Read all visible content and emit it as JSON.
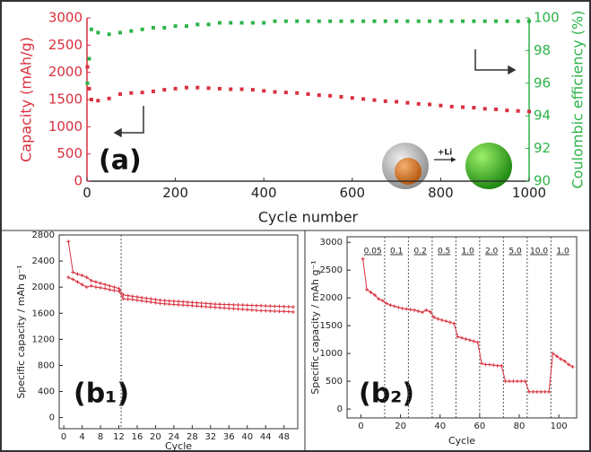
{
  "chart_data": [
    {
      "type": "scatter",
      "annotation": "(a)",
      "inset_label": "+Li",
      "xlabel": "Cycle number",
      "ylabel": "Capacity (mAh/g)",
      "y2label": "Coulombic efficiency (%)",
      "xlim": [
        0,
        1000
      ],
      "xticks": [
        0,
        200,
        400,
        600,
        800,
        1000
      ],
      "ylim": [
        0,
        3000
      ],
      "yticks": [
        0,
        500,
        1000,
        1500,
        2000,
        2500,
        3000
      ],
      "y2lim": [
        90,
        100
      ],
      "y2ticks": [
        90,
        92,
        94,
        96,
        98,
        100
      ],
      "x": [
        1,
        5,
        10,
        25,
        50,
        75,
        100,
        125,
        150,
        175,
        200,
        225,
        250,
        275,
        300,
        325,
        350,
        375,
        400,
        425,
        450,
        475,
        500,
        525,
        550,
        575,
        600,
        625,
        650,
        675,
        700,
        725,
        750,
        775,
        800,
        825,
        850,
        875,
        900,
        925,
        950,
        975,
        1000
      ],
      "series": [
        {
          "color": "#d9303e",
          "axis": "y",
          "values": [
            2100,
            1700,
            1500,
            1480,
            1520,
            1600,
            1620,
            1630,
            1650,
            1680,
            1700,
            1720,
            1720,
            1710,
            1700,
            1690,
            1690,
            1680,
            1660,
            1640,
            1630,
            1620,
            1600,
            1580,
            1570,
            1550,
            1530,
            1510,
            1490,
            1470,
            1460,
            1440,
            1420,
            1410,
            1390,
            1370,
            1360,
            1350,
            1330,
            1320,
            1300,
            1290,
            1280
          ]
        },
        {
          "color": "#2db34a",
          "axis": "y2",
          "values": [
            96,
            97.5,
            99.3,
            99.1,
            99.0,
            99.1,
            99.2,
            99.3,
            99.4,
            99.4,
            99.5,
            99.5,
            99.6,
            99.6,
            99.7,
            99.7,
            99.7,
            99.7,
            99.7,
            99.8,
            99.8,
            99.8,
            99.8,
            99.8,
            99.8,
            99.8,
            99.8,
            99.8,
            99.8,
            99.8,
            99.8,
            99.8,
            99.8,
            99.8,
            99.8,
            99.8,
            99.8,
            99.8,
            99.8,
            99.8,
            99.8,
            99.8,
            99.8
          ]
        }
      ]
    },
    {
      "type": "line",
      "annotation": "(b₁)",
      "xlabel": "Cycle",
      "ylabel": "Specific capacity / mAh g⁻¹",
      "xlim": [
        -1,
        51
      ],
      "xticks": [
        0,
        4,
        8,
        12,
        16,
        20,
        24,
        28,
        32,
        36,
        40,
        44,
        48
      ],
      "ylim": [
        -170,
        2800
      ],
      "yticks": [
        0,
        400,
        800,
        1200,
        1600,
        2000,
        2400,
        2800
      ],
      "vlines": [
        12.5
      ],
      "x": [
        1,
        2,
        3,
        4,
        5,
        6,
        7,
        8,
        9,
        10,
        11,
        12,
        13,
        14,
        15,
        16,
        17,
        18,
        19,
        20,
        21,
        22,
        23,
        24,
        25,
        26,
        27,
        28,
        29,
        30,
        31,
        32,
        33,
        34,
        35,
        36,
        37,
        38,
        39,
        40,
        41,
        42,
        43,
        44,
        45,
        46,
        47,
        48,
        49,
        50
      ],
      "series": [
        {
          "color": "#d9303e",
          "values": [
            2700,
            2230,
            2200,
            2180,
            2150,
            2100,
            2080,
            2060,
            2040,
            2020,
            2000,
            1980,
            1880,
            1870,
            1860,
            1850,
            1840,
            1830,
            1820,
            1810,
            1800,
            1795,
            1790,
            1785,
            1780,
            1775,
            1770,
            1765,
            1760,
            1755,
            1750,
            1745,
            1740,
            1738,
            1735,
            1732,
            1730,
            1727,
            1725,
            1722,
            1720,
            1717,
            1715,
            1712,
            1710,
            1707,
            1705,
            1702,
            1700,
            1697
          ]
        },
        {
          "color": "#d9303e",
          "values": [
            2150,
            2120,
            2080,
            2040,
            2000,
            2020,
            2000,
            1990,
            1980,
            1960,
            1950,
            1940,
            1820,
            1815,
            1810,
            1800,
            1790,
            1780,
            1770,
            1760,
            1750,
            1745,
            1740,
            1735,
            1730,
            1725,
            1720,
            1715,
            1710,
            1705,
            1700,
            1695,
            1690,
            1685,
            1680,
            1675,
            1670,
            1665,
            1660,
            1655,
            1650,
            1645,
            1640,
            1638,
            1635,
            1632,
            1630,
            1627,
            1625,
            1620
          ]
        }
      ]
    },
    {
      "type": "line",
      "annotation": "(b₂)",
      "xlabel": "Cycle",
      "ylabel": "Specific capacity / mAh g⁻¹",
      "xlim": [
        -7,
        109
      ],
      "xticks": [
        0,
        20,
        40,
        60,
        80,
        100
      ],
      "ylim": [
        -160,
        3100
      ],
      "yticks": [
        0,
        500,
        1000,
        1500,
        2000,
        2500,
        3000
      ],
      "vlines": [
        12,
        24,
        36,
        48,
        60,
        72,
        84,
        96
      ],
      "rate_labels": [
        "0.05",
        "0.1",
        "0.2",
        "0.5",
        "1.0",
        "2.0",
        "5.0",
        "10.0",
        "1.0"
      ],
      "x": [
        1,
        3,
        5,
        7,
        9,
        11,
        13,
        15,
        17,
        19,
        21,
        23,
        25,
        27,
        29,
        31,
        33,
        35,
        37,
        39,
        41,
        43,
        45,
        47,
        49,
        51,
        53,
        55,
        57,
        59,
        61,
        63,
        65,
        67,
        69,
        71,
        73,
        75,
        77,
        79,
        81,
        83,
        85,
        87,
        89,
        91,
        93,
        95,
        97,
        99,
        101,
        103,
        105,
        107
      ],
      "series": [
        {
          "color": "#d9303e",
          "values": [
            2700,
            2150,
            2100,
            2050,
            1980,
            1950,
            1900,
            1870,
            1850,
            1830,
            1810,
            1800,
            1790,
            1780,
            1760,
            1740,
            1780,
            1750,
            1650,
            1620,
            1600,
            1580,
            1560,
            1540,
            1300,
            1280,
            1260,
            1240,
            1220,
            1200,
            820,
            800,
            800,
            790,
            780,
            780,
            500,
            500,
            500,
            500,
            500,
            500,
            310,
            310,
            310,
            310,
            310,
            310,
            1000,
            950,
            900,
            860,
            800,
            760
          ]
        }
      ]
    }
  ]
}
